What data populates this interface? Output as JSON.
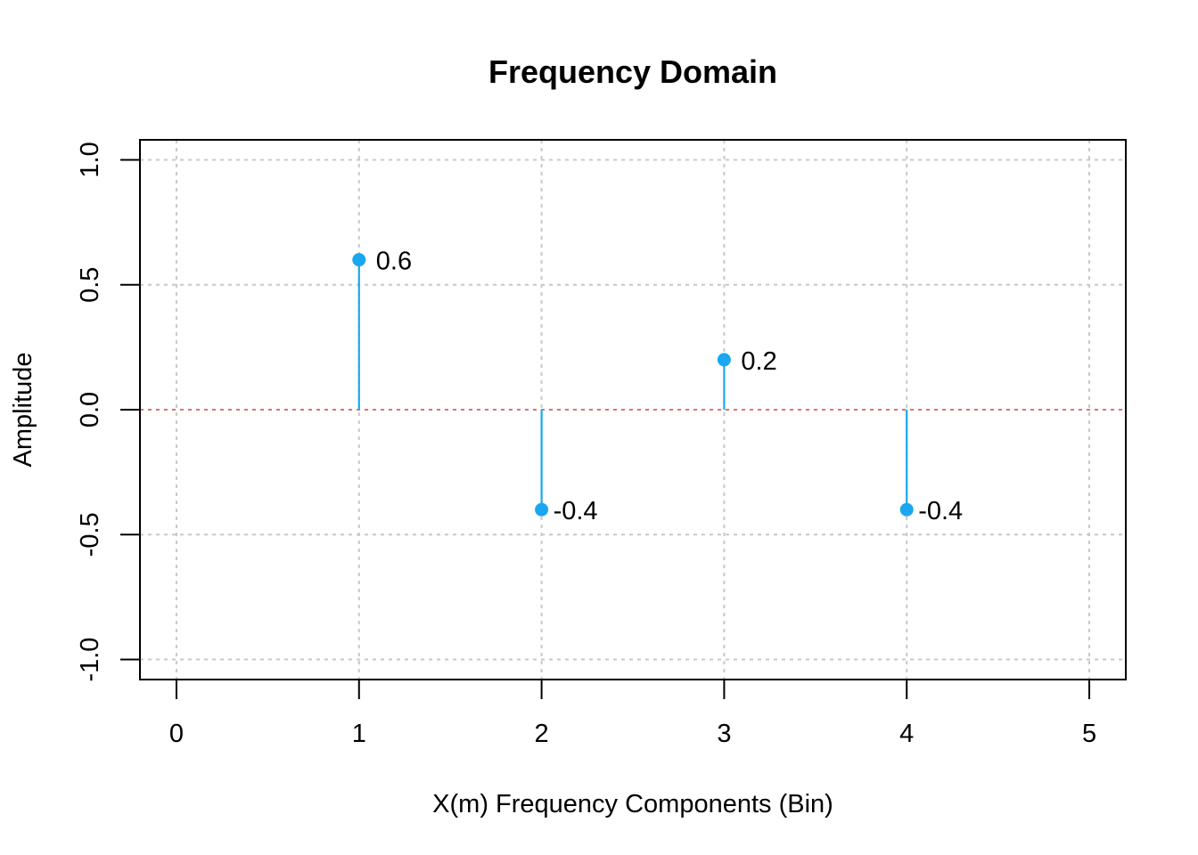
{
  "chart_data": {
    "type": "stem",
    "title": "Frequency Domain",
    "xlabel": "X(m) Frequency Components (Bin)",
    "ylabel": "Amplitude",
    "xlim": [
      0,
      5
    ],
    "ylim": [
      -1,
      1
    ],
    "x_ticks": [
      "0",
      "1",
      "2",
      "3",
      "4",
      "5"
    ],
    "y_ticks": [
      "-1.0",
      "-0.5",
      "0.0",
      "0.5",
      "1.0"
    ],
    "grid": true,
    "x": [
      1,
      2,
      3,
      4
    ],
    "y": [
      0.6,
      -0.4,
      0.2,
      -0.4
    ],
    "data_labels": [
      "0.6",
      "-0.4",
      "0.2",
      "-0.4"
    ],
    "reference_line": {
      "y": 0,
      "color": "#e07070"
    },
    "series_color": "#1aa7f0"
  }
}
